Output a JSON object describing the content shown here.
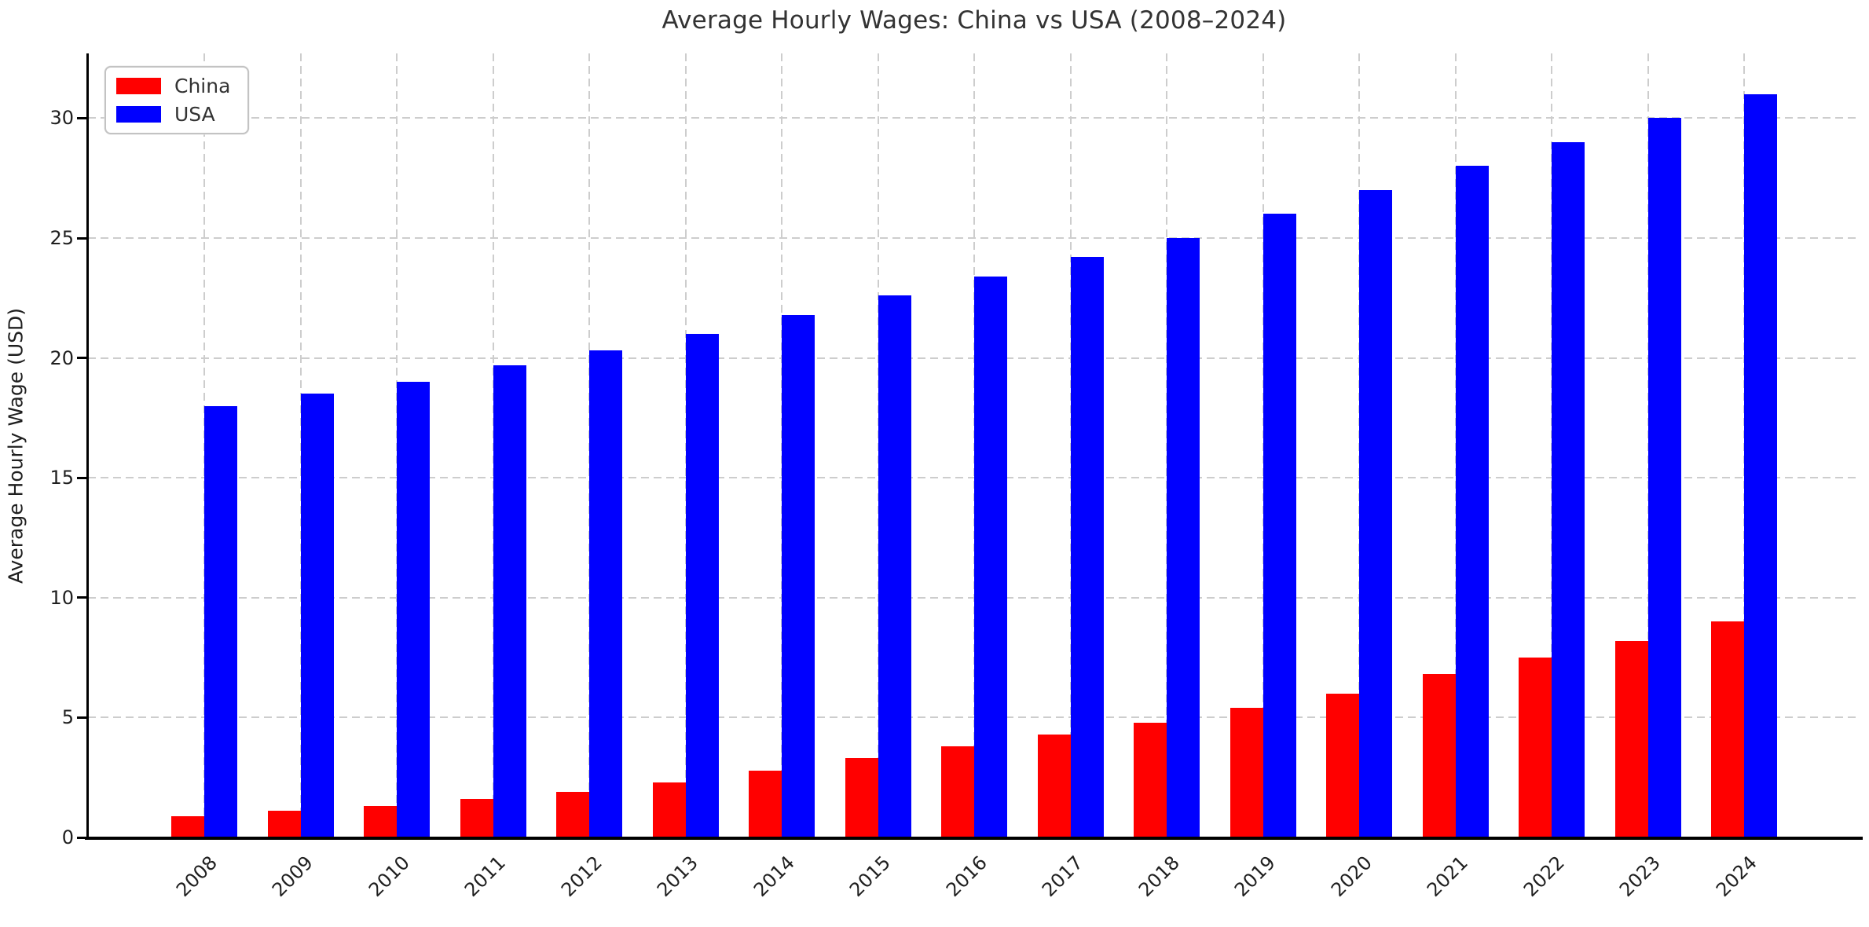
{
  "chart_data": {
    "type": "bar",
    "title": "Average Hourly Wages: China vs USA (2008–2024)",
    "ylabel": "Average Hourly Wage (USD)",
    "xlabel": "",
    "categories": [
      "2008",
      "2009",
      "2010",
      "2011",
      "2012",
      "2013",
      "2014",
      "2015",
      "2016",
      "2017",
      "2018",
      "2019",
      "2020",
      "2021",
      "2022",
      "2023",
      "2024"
    ],
    "series": [
      {
        "name": "China",
        "color": "#ff0000",
        "values": [
          0.9,
          1.1,
          1.3,
          1.6,
          1.9,
          2.3,
          2.8,
          3.3,
          3.8,
          4.3,
          4.8,
          5.4,
          6.0,
          6.8,
          7.5,
          8.2,
          9.0
        ]
      },
      {
        "name": "USA",
        "color": "#0000ff",
        "values": [
          18.0,
          18.5,
          19.0,
          19.7,
          20.3,
          21.0,
          21.8,
          22.6,
          23.4,
          24.2,
          25.0,
          26.0,
          27.0,
          28.0,
          29.0,
          30.0,
          31.0
        ]
      }
    ],
    "yticks": [
      0,
      5,
      10,
      15,
      20,
      25,
      30
    ],
    "ylim": [
      0,
      32.7
    ],
    "grid": true,
    "grid_style": "dashed",
    "grid_color": "#cdcdcd",
    "legend_position": "upper left",
    "background_color": "#ffffff",
    "xtick_rotation": 45
  }
}
